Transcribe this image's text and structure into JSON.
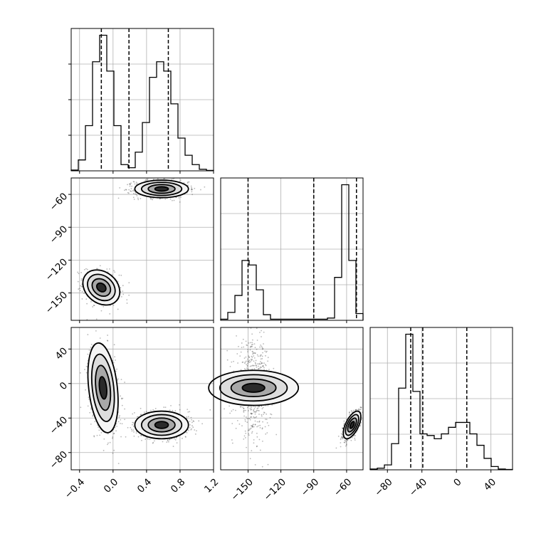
{
  "chart_data": {
    "type": "corner",
    "grid": true,
    "parameters": [
      {
        "key": "p0",
        "range": [
          -0.5,
          1.2
        ],
        "ticks": [
          -0.4,
          0.0,
          0.4,
          0.8,
          1.2
        ],
        "tick_labels": [
          "−0.4",
          "0.0",
          "0.4",
          "0.8",
          "1.2"
        ],
        "quantiles": [
          -0.14,
          0.19,
          0.66
        ]
      },
      {
        "key": "p1",
        "range": [
          -175,
          -45
        ],
        "ticks": [
          -150,
          -120,
          -90,
          -60
        ],
        "tick_labels": [
          "−150",
          "−120",
          "−90",
          "−60"
        ],
        "quantiles": [
          -150,
          -90,
          -51
        ]
      },
      {
        "key": "p2",
        "range": [
          -100,
          65
        ],
        "ticks": [
          -80,
          -40,
          0,
          40
        ],
        "tick_labels": [
          "−80",
          "−40",
          "0",
          "40"
        ],
        "quantiles": [
          -53,
          -39,
          12
        ]
      }
    ],
    "histograms": [
      {
        "param": "p0",
        "bin_edges": [
          -0.5,
          -0.415,
          -0.33,
          -0.245,
          -0.16,
          -0.075,
          0.01,
          0.095,
          0.18,
          0.265,
          0.35,
          0.435,
          0.52,
          0.605,
          0.69,
          0.775,
          0.86,
          0.945,
          1.03,
          1.115,
          1.2
        ],
        "counts": [
          0.5,
          7,
          29,
          70,
          87,
          64,
          29,
          4,
          2,
          12,
          31,
          60,
          70,
          64,
          43,
          21,
          10,
          4,
          1,
          0.3
        ]
      },
      {
        "param": "p1",
        "bin_edges": [
          -175,
          -168.5,
          -162,
          -155.5,
          -149,
          -142.5,
          -136,
          -129.5,
          -123,
          -116.5,
          -110,
          -103.5,
          -97,
          -90.5,
          -84,
          -77.5,
          -71,
          -64.5,
          -58,
          -51.5,
          -45
        ],
        "counts": [
          1,
          7,
          22,
          53,
          49,
          27,
          5,
          1,
          1,
          1,
          1,
          1,
          1,
          1,
          1,
          2,
          38,
          120,
          53,
          6
        ]
      },
      {
        "param": "p2",
        "bin_edges": [
          -100,
          -91.75,
          -83.5,
          -75.25,
          -67,
          -58.75,
          -50.5,
          -42.25,
          -34,
          -25.75,
          -17.5,
          -9.25,
          -1,
          7.25,
          15.5,
          23.75,
          32,
          40.25,
          48.5,
          56.75,
          65
        ],
        "counts": [
          0.5,
          1,
          3,
          16,
          50,
          83,
          48,
          22,
          21,
          19,
          22,
          26,
          29,
          29,
          22,
          15,
          7,
          2,
          0.5,
          0.2
        ]
      }
    ],
    "scatter_blobs": [
      {
        "x": "p0",
        "y": "p1",
        "cx": -0.14,
        "cy": -145,
        "sx": 0.11,
        "sy": 8,
        "rho": -0.25,
        "weight": 0.45
      },
      {
        "x": "p0",
        "y": "p1",
        "cx": 0.58,
        "cy": -55,
        "sx": 0.16,
        "sy": 4,
        "rho": 0.0,
        "weight": 0.55
      },
      {
        "x": "p0",
        "y": "p2",
        "cx": -0.12,
        "cy": -5,
        "sx": 0.09,
        "sy": 26,
        "rho": -0.3,
        "weight": 0.45
      },
      {
        "x": "p0",
        "y": "p2",
        "cx": 0.58,
        "cy": -48,
        "sx": 0.16,
        "sy": 8,
        "rho": 0.0,
        "weight": 0.55
      },
      {
        "x": "p1",
        "y": "p2",
        "cx": -145,
        "cy": -5,
        "sx": 8,
        "sy": 26,
        "rho": 0.0,
        "weight": 0.45
      },
      {
        "x": "p1",
        "y": "p2",
        "cx": -55,
        "cy": -48,
        "sx": 4,
        "sy": 8,
        "rho": 0.6,
        "weight": 0.55
      }
    ],
    "contour_sigmas": [
      0.5,
      1.0,
      1.5,
      2.0
    ]
  }
}
